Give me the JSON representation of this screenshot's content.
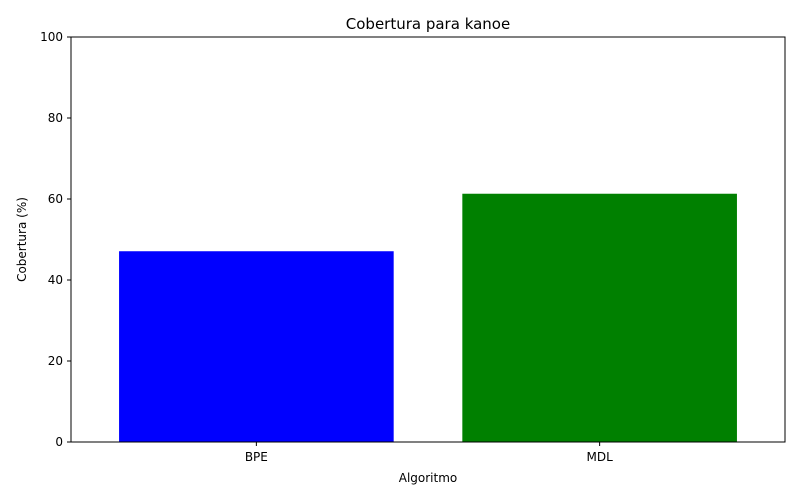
{
  "chart_data": {
    "type": "bar",
    "title": "Cobertura para kanoe",
    "xlabel": "Algoritmo",
    "ylabel": "Cobertura (%)",
    "categories": [
      "BPE",
      "MDL"
    ],
    "values": [
      47.1,
      61.3
    ],
    "colors": [
      "#0000ff",
      "#008000"
    ],
    "ylim": [
      0,
      100
    ],
    "yticks": [
      0,
      20,
      40,
      60,
      80,
      100
    ],
    "grid": false,
    "legend": "none"
  }
}
